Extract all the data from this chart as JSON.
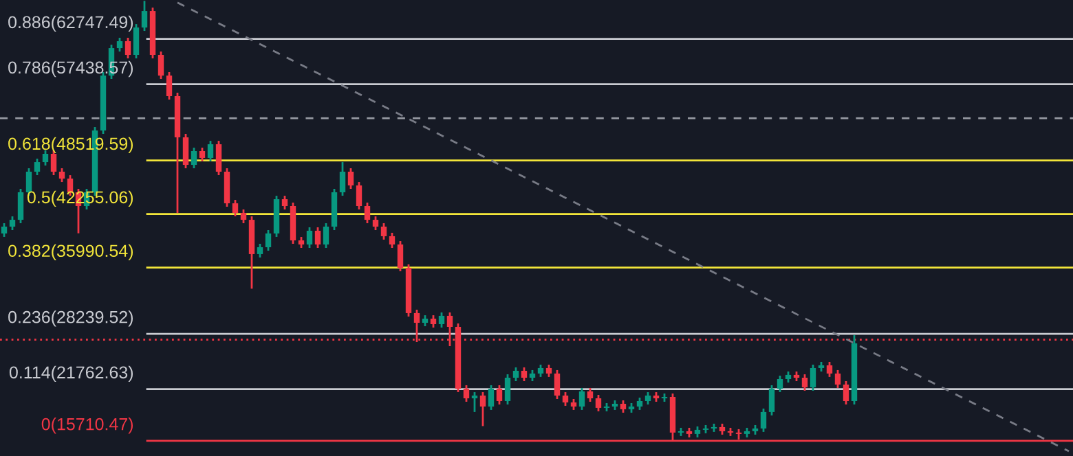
{
  "chart_data": {
    "type": "candlestick",
    "categories": [
      null,
      null,
      null,
      null,
      null,
      null,
      null,
      null,
      null,
      null,
      null,
      null,
      null,
      null,
      null,
      null,
      null,
      null,
      null,
      null,
      null,
      null,
      null,
      null,
      null,
      null,
      null,
      null,
      null,
      null,
      null,
      null,
      null,
      null,
      null,
      null,
      null,
      null,
      null,
      null,
      null,
      null,
      null,
      null,
      null,
      null,
      null,
      null,
      null,
      null,
      null,
      null,
      null,
      null,
      null,
      null,
      null,
      null,
      null,
      null,
      null,
      null,
      null,
      null,
      null,
      null,
      null,
      null,
      null,
      null,
      null,
      null,
      null,
      null,
      null,
      null,
      null,
      null,
      null,
      null,
      null,
      null,
      null,
      null,
      null,
      null,
      null,
      null,
      null,
      null,
      null,
      null,
      null,
      null,
      null,
      null,
      null,
      null,
      null,
      null,
      null,
      null,
      null,
      null,
      null,
      null,
      null,
      null,
      null,
      null,
      null,
      null,
      null,
      null,
      null,
      null,
      null,
      null,
      null,
      null,
      null,
      null,
      null,
      null,
      null,
      null,
      null,
      null,
      null,
      null
    ],
    "ohlc": [
      [
        39980,
        41180,
        39580,
        40780
      ],
      [
        40780,
        41980,
        40380,
        41580
      ],
      [
        41580,
        45200,
        41180,
        44800
      ],
      [
        44800,
        47610,
        44400,
        47210
      ],
      [
        47210,
        48730,
        46810,
        48330
      ],
      [
        48330,
        49700,
        47930,
        49300
      ],
      [
        49300,
        49700,
        46810,
        47210
      ],
      [
        47210,
        47610,
        46000,
        46400
      ],
      [
        46400,
        46800,
        44400,
        44800
      ],
      [
        44800,
        45200,
        40000,
        43190
      ],
      [
        43190,
        45200,
        42790,
        44800
      ],
      [
        44800,
        52430,
        44400,
        52030
      ],
      [
        52030,
        58860,
        51630,
        58460
      ],
      [
        58460,
        62070,
        58060,
        61670
      ],
      [
        61670,
        62880,
        61270,
        62480
      ],
      [
        62480,
        62880,
        60470,
        60870
      ],
      [
        60870,
        64480,
        60470,
        64080
      ],
      [
        64080,
        67200,
        63680,
        66010
      ],
      [
        66010,
        66410,
        60470,
        60870
      ],
      [
        60870,
        61270,
        58060,
        58460
      ],
      [
        58460,
        58860,
        55650,
        56050
      ],
      [
        56050,
        56450,
        42390,
        51230
      ],
      [
        51230,
        51630,
        47610,
        48010
      ],
      [
        48010,
        50020,
        47610,
        49620
      ],
      [
        49620,
        50020,
        48420,
        48820
      ],
      [
        48820,
        50820,
        48420,
        50420
      ],
      [
        50420,
        50820,
        46810,
        47210
      ],
      [
        47210,
        47610,
        43110,
        43510
      ],
      [
        43510,
        43910,
        41990,
        42390
      ],
      [
        42390,
        42790,
        41180,
        41580
      ],
      [
        41580,
        41980,
        33520,
        37570
      ],
      [
        37570,
        38770,
        37170,
        38370
      ],
      [
        38370,
        40380,
        37970,
        39980
      ],
      [
        39980,
        44390,
        39580,
        43990
      ],
      [
        43990,
        44390,
        42790,
        43190
      ],
      [
        43190,
        43590,
        38770,
        39170
      ],
      [
        39170,
        39570,
        38290,
        38690
      ],
      [
        38690,
        40700,
        38290,
        40300
      ],
      [
        40300,
        40700,
        38290,
        38690
      ],
      [
        38690,
        41180,
        38290,
        40780
      ],
      [
        40780,
        45200,
        40380,
        44800
      ],
      [
        44800,
        48330,
        44400,
        47210
      ],
      [
        47210,
        47610,
        45200,
        45600
      ],
      [
        45600,
        46000,
        42790,
        43190
      ],
      [
        43190,
        43590,
        41180,
        41580
      ],
      [
        41580,
        41980,
        40380,
        40780
      ],
      [
        40780,
        41180,
        39260,
        39660
      ],
      [
        39660,
        40060,
        38290,
        38690
      ],
      [
        38690,
        39090,
        35560,
        35960
      ],
      [
        35960,
        36360,
        30260,
        30660
      ],
      [
        30660,
        31060,
        27280,
        29530
      ],
      [
        29530,
        30410,
        29130,
        30010
      ],
      [
        30010,
        30410,
        28970,
        29370
      ],
      [
        29370,
        30740,
        28970,
        30340
      ],
      [
        30340,
        30740,
        26800,
        29050
      ],
      [
        29050,
        29450,
        21420,
        21820
      ],
      [
        21820,
        22220,
        20290,
        20690
      ],
      [
        20690,
        21410,
        19090,
        21010
      ],
      [
        21010,
        21410,
        17440,
        19730
      ],
      [
        19730,
        22220,
        19330,
        21820
      ],
      [
        21820,
        22220,
        19970,
        20370
      ],
      [
        20370,
        23500,
        19970,
        23100
      ],
      [
        23100,
        24310,
        22700,
        23910
      ],
      [
        23910,
        24310,
        22700,
        23100
      ],
      [
        23100,
        23990,
        22700,
        23590
      ],
      [
        23590,
        24630,
        23190,
        24230
      ],
      [
        24230,
        24630,
        23190,
        23590
      ],
      [
        23590,
        23990,
        20610,
        21010
      ],
      [
        21010,
        21410,
        19810,
        20210
      ],
      [
        20210,
        20610,
        19330,
        19730
      ],
      [
        19730,
        21900,
        19330,
        21500
      ],
      [
        21500,
        21900,
        20290,
        20690
      ],
      [
        20690,
        21090,
        19170,
        19570
      ],
      [
        19570,
        20130,
        19170,
        19730
      ],
      [
        19730,
        20450,
        19330,
        20050
      ],
      [
        20050,
        20450,
        19010,
        19410
      ],
      [
        19410,
        20130,
        19010,
        19730
      ],
      [
        19730,
        20770,
        19330,
        20370
      ],
      [
        20370,
        21410,
        19970,
        21010
      ],
      [
        21010,
        21410,
        20290,
        20690
      ],
      [
        20690,
        21250,
        20290,
        20850
      ],
      [
        20850,
        21250,
        15710,
        16680
      ],
      [
        16680,
        17240,
        16280,
        16840
      ],
      [
        16840,
        17240,
        16120,
        16520
      ],
      [
        16520,
        17400,
        16120,
        17000
      ],
      [
        17000,
        17560,
        16600,
        17160
      ],
      [
        17160,
        17720,
        16760,
        17320
      ],
      [
        17320,
        17720,
        16440,
        16840
      ],
      [
        16840,
        17240,
        16280,
        16680
      ],
      [
        16680,
        17080,
        15870,
        16520
      ],
      [
        16520,
        17240,
        16120,
        16840
      ],
      [
        16840,
        17560,
        16440,
        17160
      ],
      [
        17160,
        19490,
        16760,
        19090
      ],
      [
        19090,
        22220,
        18690,
        21820
      ],
      [
        21820,
        23340,
        21420,
        22940
      ],
      [
        22940,
        23830,
        22540,
        23430
      ],
      [
        23430,
        23830,
        22700,
        23100
      ],
      [
        23100,
        23500,
        21580,
        21980
      ],
      [
        21980,
        24630,
        21580,
        24230
      ],
      [
        24230,
        24950,
        23830,
        24550
      ],
      [
        24550,
        24950,
        23190,
        23590
      ],
      [
        23590,
        23990,
        21900,
        22300
      ],
      [
        22300,
        22700,
        19970,
        20370
      ],
      [
        20370,
        28080,
        19970,
        27120
      ],
      null,
      null,
      null,
      null,
      null,
      null,
      null,
      null,
      null,
      null,
      null,
      null,
      null,
      null,
      null,
      null,
      null,
      null,
      null,
      null,
      null,
      null,
      null,
      null,
      null,
      null
    ],
    "series": [
      {
        "type": "line",
        "color": "#787b86",
        "line_style": "dashed",
        "values": [
          null,
          null,
          null,
          null,
          null,
          null,
          null,
          null,
          null,
          null,
          null,
          null,
          null,
          null,
          null,
          null,
          null,
          null,
          null,
          null,
          null,
          67000,
          null,
          null,
          null,
          null,
          null,
          null,
          null,
          null,
          null,
          null,
          null,
          null,
          null,
          null,
          null,
          null,
          null,
          null,
          null,
          null,
          null,
          null,
          null,
          null,
          null,
          null,
          null,
          null,
          null,
          null,
          null,
          null,
          null,
          null,
          null,
          null,
          null,
          null,
          null,
          null,
          null,
          null,
          null,
          null,
          null,
          null,
          null,
          null,
          null,
          null,
          null,
          null,
          null,
          null,
          null,
          null,
          null,
          null,
          null,
          null,
          null,
          null,
          null,
          null,
          null,
          null,
          null,
          null,
          null,
          null,
          null,
          null,
          null,
          null,
          null,
          null,
          null,
          null,
          null,
          null,
          null,
          null,
          null,
          null,
          null,
          null,
          null,
          null,
          null,
          null,
          null,
          null,
          null,
          null,
          null,
          null,
          null,
          null,
          null,
          null,
          null,
          null,
          null,
          null,
          null,
          null,
          null,
          14500
        ]
      }
    ],
    "ylim": [
      13940,
      67300
    ],
    "ref_lines": [
      {
        "axis": "y",
        "value": 62747.49,
        "label": "0.886(62747.49)",
        "color": "#c9cbd1",
        "line_style": "solid"
      },
      {
        "axis": "y",
        "value": 57438.57,
        "label": "0.786(57438.57)",
        "color": "#c9cbd1",
        "line_style": "solid"
      },
      {
        "axis": "y",
        "value": 53475,
        "label": null,
        "color": "#9598a1",
        "line_style": "dashed"
      },
      {
        "axis": "y",
        "value": 48519.59,
        "label": "0.618(48519.59)",
        "color": "#f2e53a",
        "line_style": "solid"
      },
      {
        "axis": "y",
        "value": 42255.06,
        "label": "0.5(42255.06)",
        "color": "#f2e53a",
        "line_style": "solid"
      },
      {
        "axis": "y",
        "value": 35990.54,
        "label": "0.382(35990.54)",
        "color": "#f2e53a",
        "line_style": "solid"
      },
      {
        "axis": "y",
        "value": 28239.52,
        "label": "0.236(28239.52)",
        "color": "#c9cbd1",
        "line_style": "solid"
      },
      {
        "axis": "y",
        "value": 27554,
        "label": null,
        "color": "#f23645",
        "line_style": "dotted"
      },
      {
        "axis": "y",
        "value": 21762.63,
        "label": "0.114(21762.63)",
        "color": "#c9cbd1",
        "line_style": "solid"
      },
      {
        "axis": "y",
        "value": 15710.47,
        "label": "0(15710.47)",
        "color": "#f23645",
        "line_style": "solid"
      }
    ]
  }
}
